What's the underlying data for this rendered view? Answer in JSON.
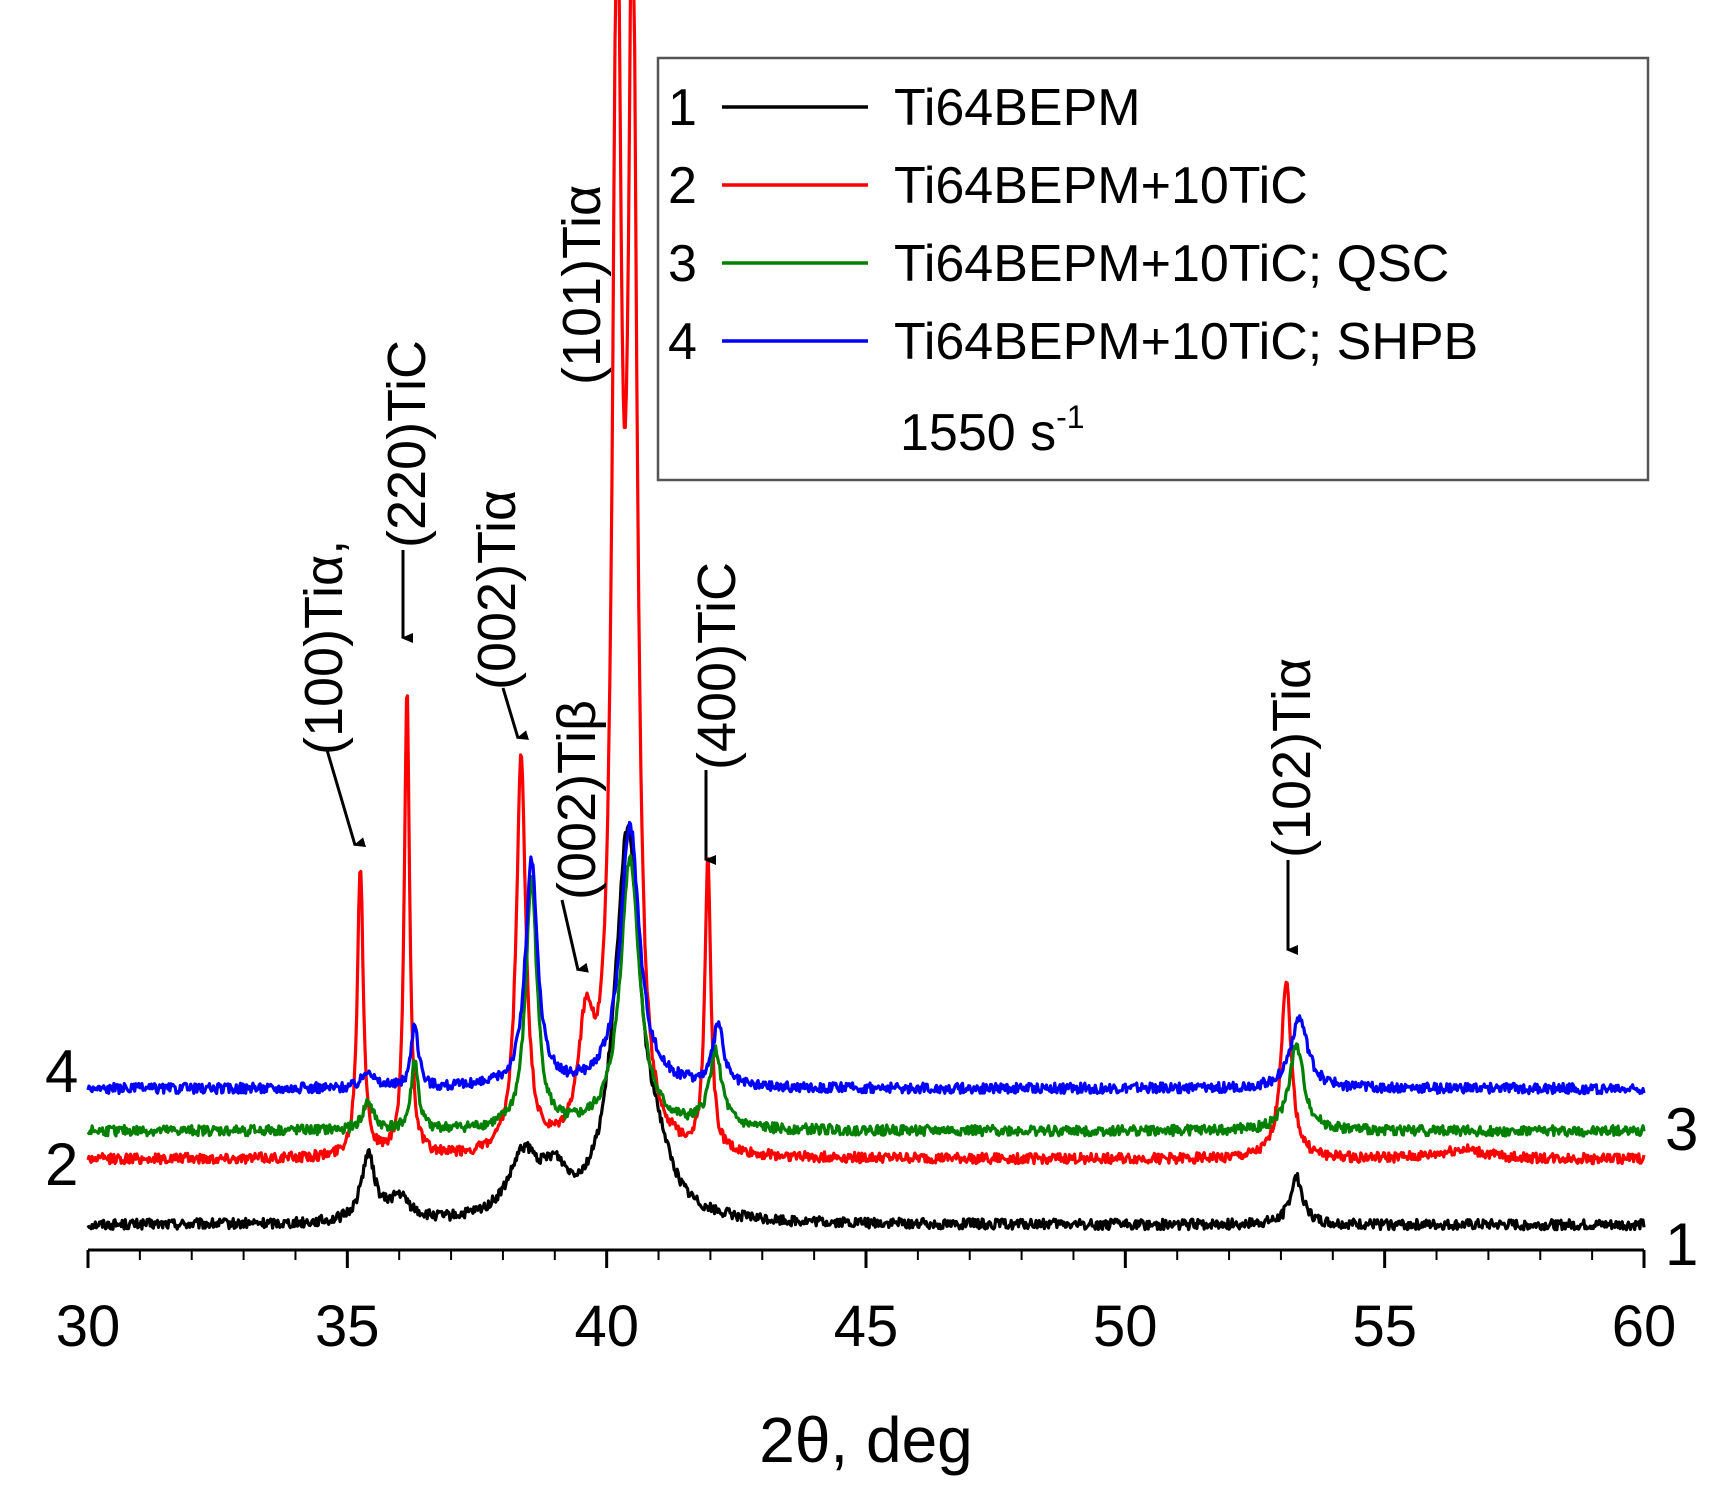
{
  "chart_data": {
    "type": "line",
    "title": "",
    "xlabel": "2θ, deg",
    "ylabel": "",
    "xlim": [
      30,
      60
    ],
    "x_ticks": [
      "30",
      "35",
      "40",
      "45",
      "50",
      "55",
      "60"
    ],
    "grid": false,
    "legend_position": "top-right",
    "series": [
      {
        "id": "1",
        "name": "Ti64BEPM",
        "color": "#000000",
        "baseline": 0.0,
        "peaks": [
          [
            35.4,
            0.14,
            0.16
          ],
          [
            36.0,
            0.05,
            0.25
          ],
          [
            38.4,
            0.13,
            0.35
          ],
          [
            39.0,
            0.08,
            0.3
          ],
          [
            40.4,
            0.82,
            0.3
          ],
          [
            41.0,
            0.08,
            0.3
          ],
          [
            53.3,
            0.1,
            0.15
          ]
        ]
      },
      {
        "id": "2",
        "name": "Ti64BEPM+10TiC",
        "color": "#ff0000",
        "baseline": 0.14,
        "peaks": [
          [
            35.25,
            0.62,
            0.07
          ],
          [
            36.15,
            1.0,
            0.06
          ],
          [
            38.35,
            0.84,
            0.11
          ],
          [
            39.6,
            0.24,
            0.18
          ],
          [
            40.2,
            2.5,
            0.1
          ],
          [
            40.5,
            2.5,
            0.1
          ],
          [
            41.95,
            0.62,
            0.07
          ],
          [
            53.1,
            0.38,
            0.12
          ],
          [
            56.5,
            0.02,
            0.5
          ]
        ]
      },
      {
        "id": "3",
        "name": "Ti64BEPM+10TiC; QSC",
        "color": "#008000",
        "baseline": 0.2,
        "peaks": [
          [
            35.4,
            0.06,
            0.12
          ],
          [
            36.3,
            0.15,
            0.08
          ],
          [
            38.55,
            0.53,
            0.13
          ],
          [
            40.45,
            0.58,
            0.22
          ],
          [
            42.1,
            0.16,
            0.15
          ],
          [
            53.3,
            0.18,
            0.17
          ]
        ]
      },
      {
        "id": "4",
        "name": "Ti64BEPM+10TiC; SHPB",
        "color": "#0000ff",
        "baseline": 0.29,
        "peaks": [
          [
            35.4,
            0.04,
            0.12
          ],
          [
            36.3,
            0.14,
            0.08
          ],
          [
            38.55,
            0.48,
            0.14
          ],
          [
            40.45,
            0.56,
            0.22
          ],
          [
            42.15,
            0.13,
            0.12
          ],
          [
            53.35,
            0.15,
            0.2
          ]
        ]
      }
    ],
    "curve_numbers": [
      "1",
      "2",
      "3",
      "4"
    ],
    "legend": {
      "entries": [
        {
          "num": "1",
          "label": "Ti64BEPM"
        },
        {
          "num": "2",
          "label": "Ti64BEPM+10TiC"
        },
        {
          "num": "3",
          "label": "Ti64BEPM+10TiC; QSC"
        },
        {
          "num": "4",
          "label": "Ti64BEPM+10TiC; SHPB"
        }
      ],
      "note": "1550 s",
      "note_superscript": "-1"
    },
    "annotations": [
      {
        "key": "p100",
        "text": "(100)Tiα,",
        "x": 35.25
      },
      {
        "key": "p220",
        "text": "(220)TiC",
        "x": 36.15
      },
      {
        "key": "p002a",
        "text": "(002)Tiα",
        "x": 38.35
      },
      {
        "key": "p002b",
        "text": "(002)Tiβ",
        "x": 39.6
      },
      {
        "key": "p101",
        "text": "(101)Tiα",
        "x": 40.3
      },
      {
        "key": "p400",
        "text": "(400)TiC",
        "x": 41.95
      },
      {
        "key": "p102",
        "text": "(102)Tiα",
        "x": 53.1
      }
    ]
  }
}
